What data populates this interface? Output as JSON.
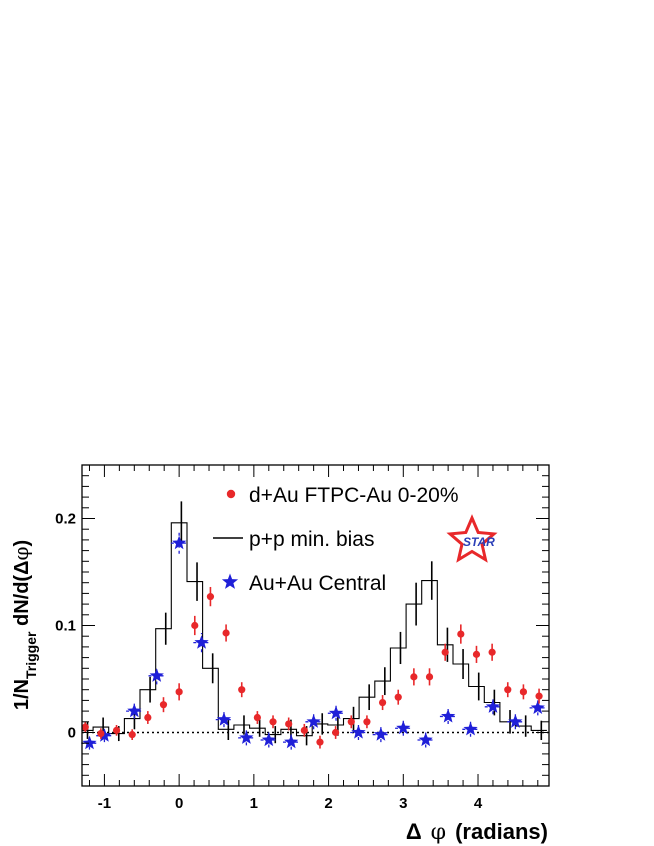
{
  "chart_data": {
    "type": "scatter",
    "title": "",
    "xlabel": "Δ φ (radians)",
    "ylabel": "1/N_Trigger dN/d(Δφ)",
    "ylabel_parts": {
      "a": "1/N",
      "sub": "Trigger",
      "b": " dN/d(Δ",
      "phi": "φ",
      "c": ")"
    },
    "xlabel_parts": {
      "delta": "Δ",
      "phi": "φ",
      "rest": "(radians)"
    },
    "xlim": [
      -1.3,
      4.95
    ],
    "ylim": [
      -0.05,
      0.25
    ],
    "x_ticks": [
      -1,
      0,
      1,
      2,
      3,
      4
    ],
    "y_ticks": [
      0,
      0.1,
      0.2
    ],
    "x_tick_labels": [
      "-1",
      "0",
      "1",
      "2",
      "3",
      "4"
    ],
    "y_tick_labels": [
      "0",
      "0.1",
      "0.2"
    ],
    "grid": false,
    "legend_position": "top-right",
    "reference_line": {
      "y": 0,
      "style": "dotted"
    },
    "logo": {
      "text": "STAR",
      "star_color": "#e8282a",
      "text_color": "#2b3fb8"
    },
    "series": [
      {
        "name": "p+p min. bias",
        "kind": "histogram",
        "color": "#000000",
        "bin_width": 0.2094,
        "bin_centers": [
          -1.2566,
          -1.0472,
          -0.8378,
          -0.6283,
          -0.4189,
          -0.2094,
          0.0,
          0.2094,
          0.4189,
          0.6283,
          0.8378,
          1.0472,
          1.2566,
          1.4661,
          1.6755,
          1.885,
          2.0944,
          2.3038,
          2.5133,
          2.7227,
          2.9322,
          3.1416,
          3.351,
          3.5605,
          3.7699,
          3.9794,
          4.1888,
          4.3982,
          4.6077,
          4.8171
        ],
        "values": [
          0.002,
          0.005,
          -0.001,
          0.013,
          0.04,
          0.097,
          0.196,
          0.141,
          0.06,
          0.003,
          0.007,
          0.004,
          -0.002,
          0.003,
          -0.003,
          0.008,
          0.007,
          0.013,
          0.033,
          0.048,
          0.079,
          0.12,
          0.142,
          0.082,
          0.064,
          0.043,
          0.028,
          0.01,
          0.006,
          0.002
        ],
        "errors": [
          0.008,
          0.009,
          0.007,
          0.01,
          0.012,
          0.015,
          0.02,
          0.018,
          0.014,
          0.01,
          0.009,
          0.008,
          0.008,
          0.009,
          0.009,
          0.01,
          0.01,
          0.011,
          0.012,
          0.013,
          0.015,
          0.02,
          0.018,
          0.016,
          0.014,
          0.013,
          0.012,
          0.011,
          0.01,
          0.009
        ]
      },
      {
        "name": "d+Au FTPC-Au 0-20%",
        "kind": "points",
        "marker": "circle",
        "color": "#e8282a",
        "x": [
          -1.2566,
          -1.0472,
          -0.8378,
          -0.6283,
          -0.4189,
          -0.2094,
          0.0,
          0.2094,
          0.4189,
          0.6283,
          0.8378,
          1.0472,
          1.2566,
          1.4661,
          1.6755,
          1.885,
          2.0944,
          2.3038,
          2.5133,
          2.7227,
          2.9322,
          3.1416,
          3.351,
          3.5605,
          3.7699,
          3.9794,
          4.1888,
          4.3982,
          4.6077,
          4.8171
        ],
        "y": [
          0.005,
          -0.001,
          0.002,
          -0.002,
          0.014,
          0.026,
          0.038,
          0.1,
          0.127,
          0.093,
          0.04,
          0.014,
          0.01,
          0.008,
          0.002,
          -0.009,
          0.0,
          0.01,
          0.01,
          0.028,
          0.033,
          0.052,
          0.052,
          0.075,
          0.092,
          0.073,
          0.075,
          0.04,
          0.038,
          0.034
        ],
        "y_errors": [
          0.005,
          0.005,
          0.005,
          0.005,
          0.006,
          0.007,
          0.008,
          0.009,
          0.009,
          0.008,
          0.007,
          0.006,
          0.006,
          0.006,
          0.006,
          0.006,
          0.006,
          0.006,
          0.006,
          0.007,
          0.007,
          0.008,
          0.008,
          0.008,
          0.009,
          0.008,
          0.008,
          0.007,
          0.007,
          0.007
        ]
      },
      {
        "name": "Au+Au Central",
        "kind": "points",
        "marker": "star",
        "color": "#1f1fd8",
        "x": [
          -1.2,
          -1.0,
          -0.6,
          -0.3,
          0.0,
          0.3,
          0.6,
          0.9,
          1.2,
          1.5,
          1.8,
          2.1,
          2.4,
          2.7,
          3.0,
          3.3,
          3.6,
          3.9,
          4.2,
          4.5,
          4.8
        ],
        "y": [
          -0.01,
          -0.003,
          0.02,
          0.053,
          0.177,
          0.084,
          0.012,
          -0.005,
          -0.007,
          -0.009,
          0.01,
          0.018,
          0.0,
          -0.002,
          0.004,
          -0.007,
          0.015,
          0.003,
          0.024,
          0.01,
          0.023
        ],
        "x_half_width": 0.11,
        "y_errors": [
          0.006,
          0.006,
          0.007,
          0.008,
          0.01,
          0.009,
          0.007,
          0.007,
          0.007,
          0.007,
          0.007,
          0.007,
          0.007,
          0.007,
          0.007,
          0.007,
          0.007,
          0.007,
          0.007,
          0.007,
          0.007
        ]
      }
    ]
  }
}
